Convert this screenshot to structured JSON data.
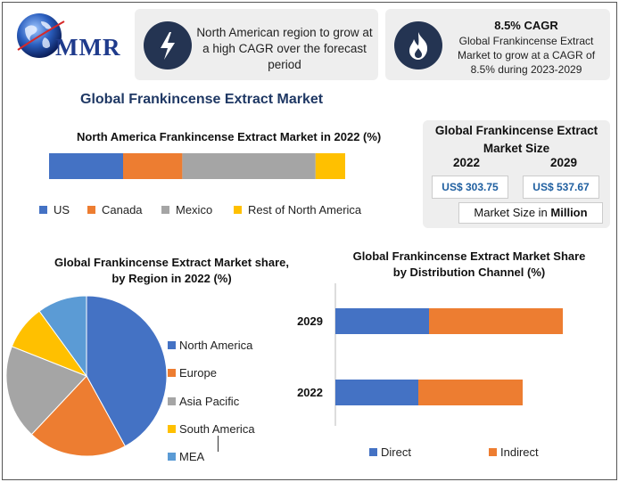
{
  "brand": {
    "logo_text": "MMR",
    "logo_icon": "globe-icon"
  },
  "info1": {
    "icon": "lightning-icon",
    "text": "North American region to grow at a high CAGR over the forecast period"
  },
  "info2": {
    "icon": "flame-icon",
    "title": "8.5% CAGR",
    "text": "Global Frankincense Extract Market to grow at a CAGR of 8.5% during 2023-2029"
  },
  "main_title": "Global Frankincense Extract Market",
  "market_size": {
    "title": "Global Frankincense Extract Market Size",
    "year_a": "2022",
    "year_b": "2029",
    "value_a": "US$ 303.75",
    "value_b": "US$ 537.67",
    "footer_prefix": "Market Size in ",
    "footer_unit": "Million"
  },
  "chart_data": [
    {
      "type": "bar",
      "orientation": "horizontal-stacked-100",
      "title": "North America Frankincense Extract Market in 2022 (%)",
      "categories": [
        "North America"
      ],
      "series": [
        {
          "name": "US",
          "values": [
            25
          ],
          "color": "#4472c4"
        },
        {
          "name": "Canada",
          "values": [
            20
          ],
          "color": "#ed7d31"
        },
        {
          "name": "Mexico",
          "values": [
            45
          ],
          "color": "#a5a5a5"
        },
        {
          "name": "Rest of North America",
          "values": [
            10
          ],
          "color": "#ffc000"
        }
      ],
      "legend": "bottom"
    },
    {
      "type": "pie",
      "title": "Global Frankincense Extract Market share, by Region in 2022 (%)",
      "slices": [
        {
          "name": "North America",
          "value": 42,
          "color": "#4472c4"
        },
        {
          "name": "Europe",
          "value": 20,
          "color": "#ed7d31"
        },
        {
          "name": "Asia Pacific",
          "value": 19,
          "color": "#a5a5a5"
        },
        {
          "name": "South America",
          "value": 9,
          "color": "#ffc000"
        },
        {
          "name": "MEA",
          "value": 10,
          "color": "#5b9bd5"
        }
      ],
      "legend": "right"
    },
    {
      "type": "bar",
      "orientation": "horizontal-stacked",
      "title": "Global Frankincense Extract Market Share by Distribution Channel (%)",
      "categories": [
        "2029",
        "2022"
      ],
      "series": [
        {
          "name": "Direct",
          "values": [
            35,
            31
          ],
          "color": "#4472c4"
        },
        {
          "name": "Indirect",
          "values": [
            50,
            39
          ],
          "color": "#ed7d31"
        }
      ],
      "xlim": [
        0,
        100
      ],
      "legend": "bottom"
    }
  ]
}
